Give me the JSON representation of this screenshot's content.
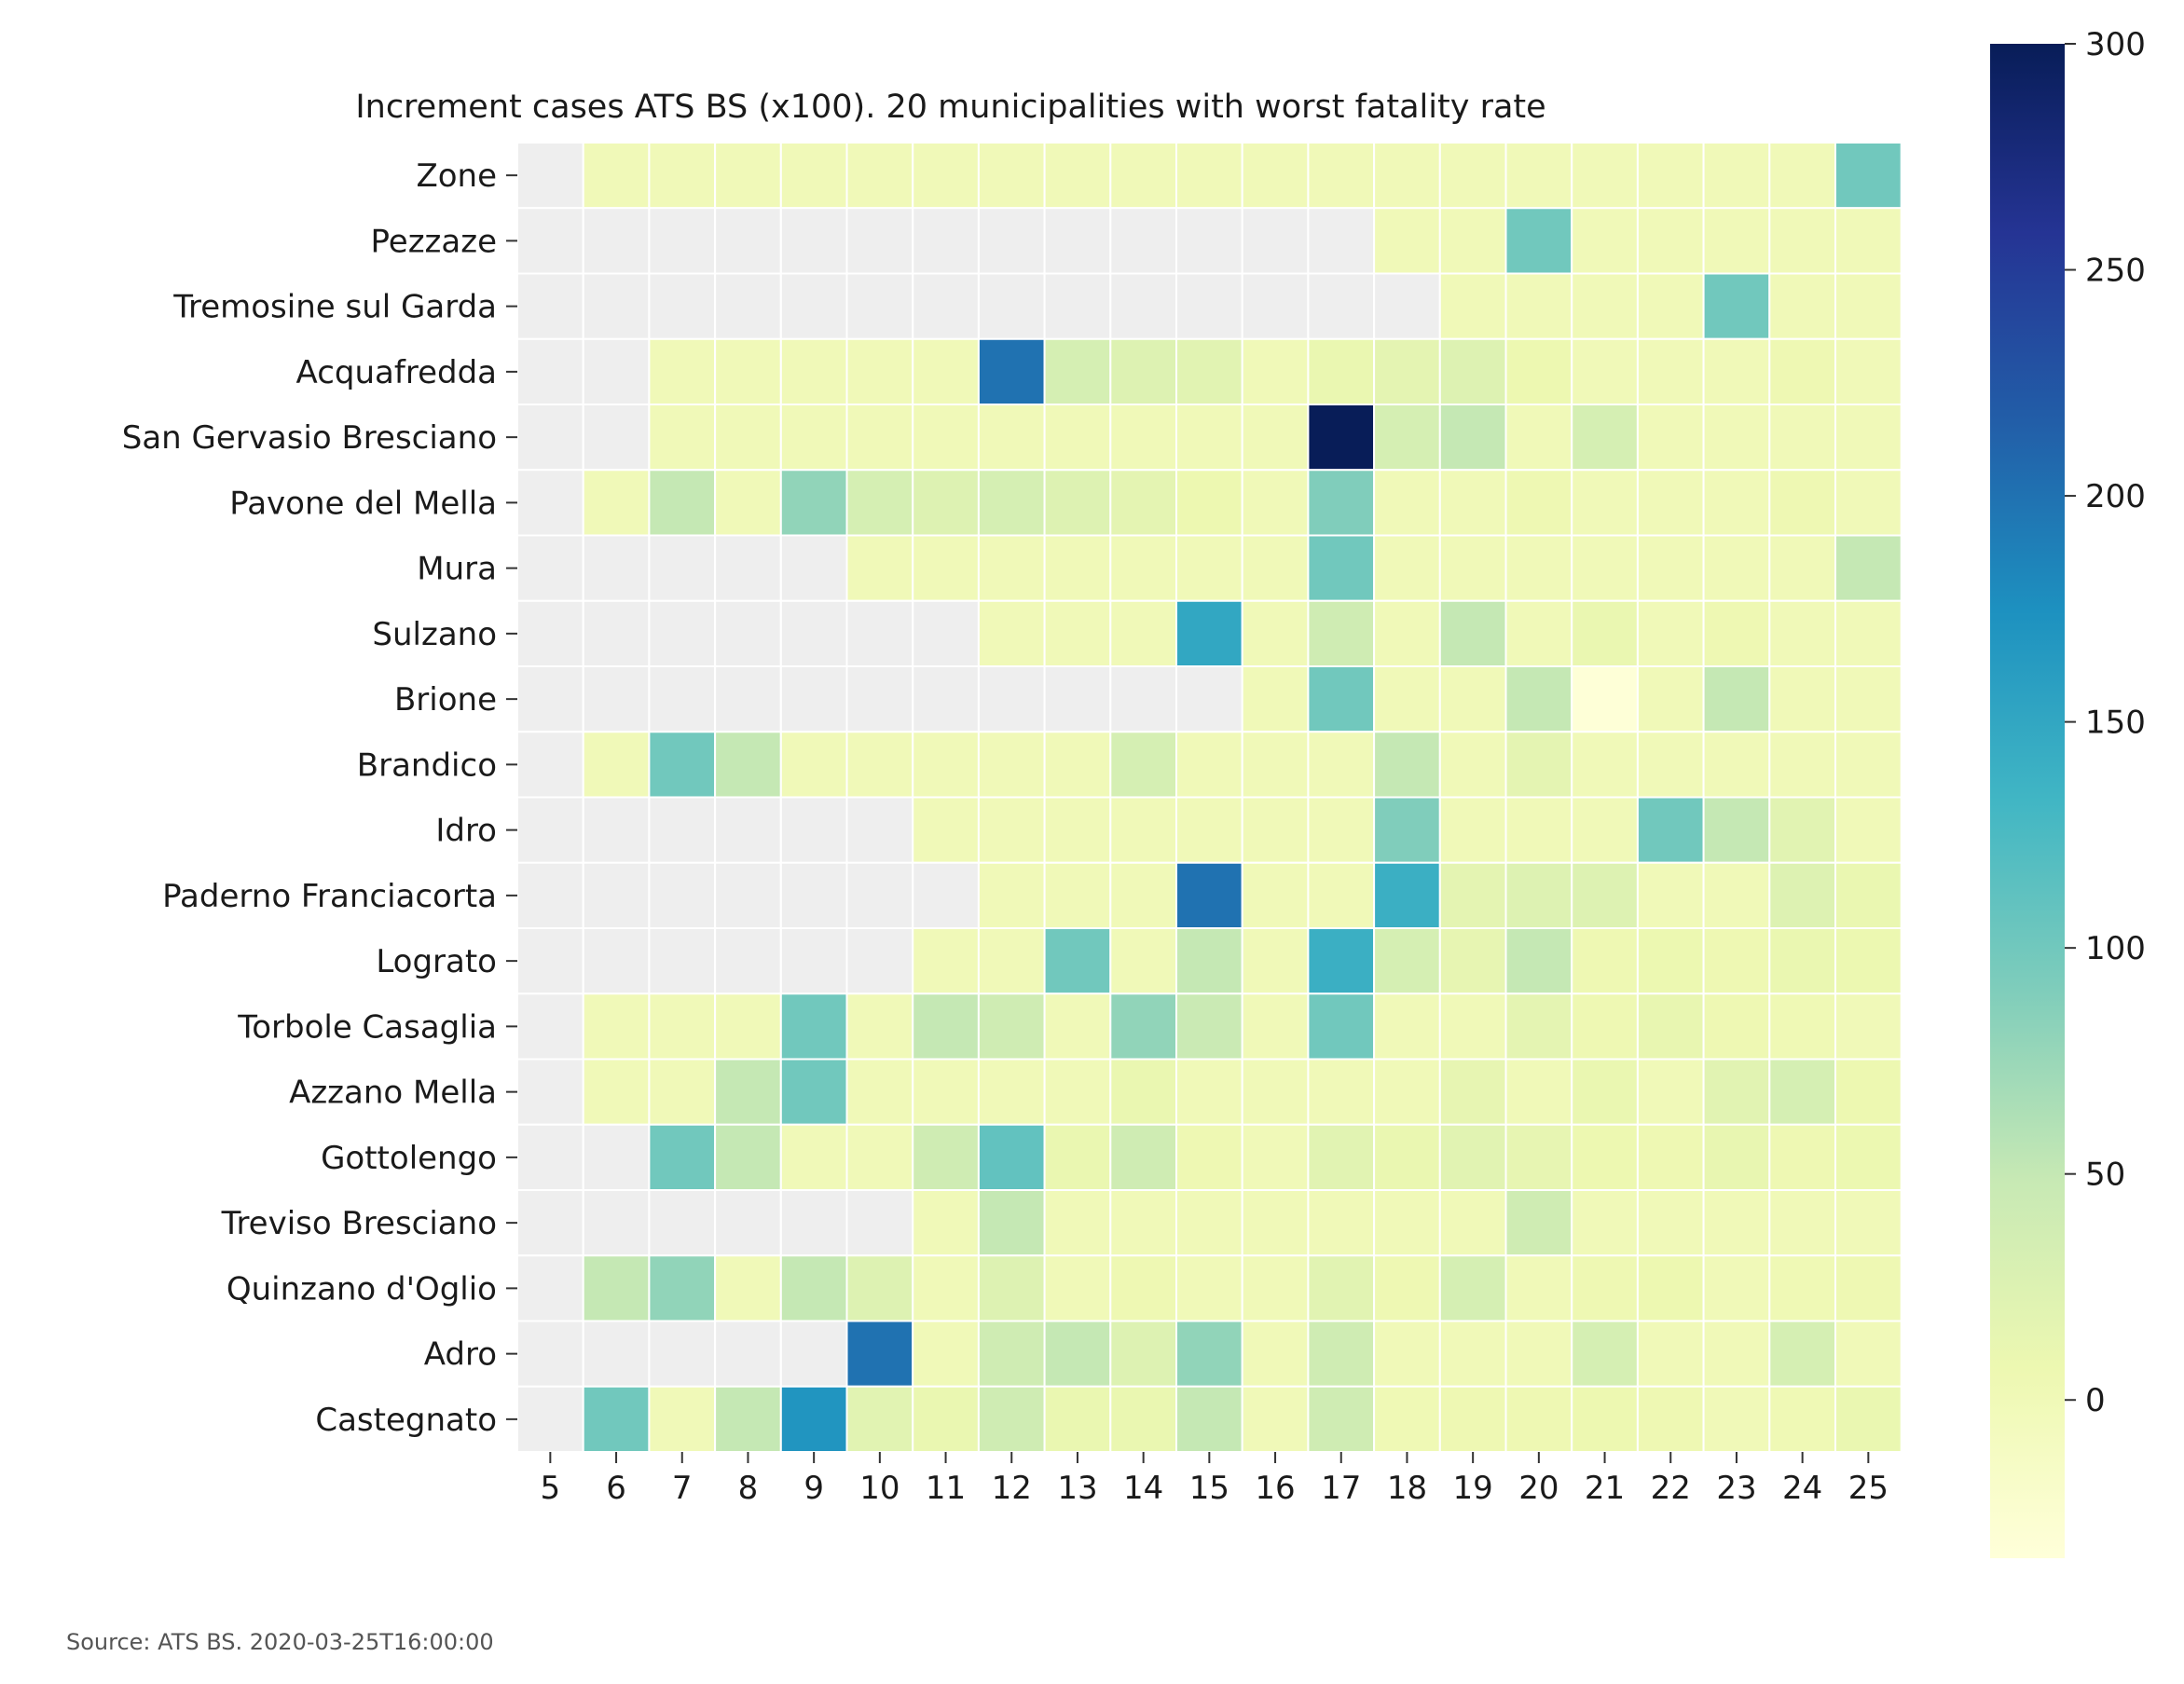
{
  "chart_data": {
    "type": "heatmap",
    "title": "Increment cases ATS BS (x100). 20 municipalities with worst fatality rate",
    "source": "Source: ATS BS. 2020-03-25T16:00:00",
    "x_categories": [
      "5",
      "6",
      "7",
      "8",
      "9",
      "10",
      "11",
      "12",
      "13",
      "14",
      "15",
      "16",
      "17",
      "18",
      "19",
      "20",
      "21",
      "22",
      "23",
      "24",
      "25"
    ],
    "y_categories": [
      "Zone",
      "Pezzaze",
      "Tremosine sul Garda",
      "Acquafredda",
      "San Gervasio Bresciano",
      "Pavone del Mella",
      "Mura",
      "Sulzano",
      "Brione",
      "Brandico",
      "Idro",
      "Paderno Franciacorta",
      "Lograto",
      "Torbole Casaglia",
      "Azzano Mella",
      "Gottolengo",
      "Treviso Bresciano",
      "Quinzano d'Oglio",
      "Adro",
      "Castegnato"
    ],
    "values": [
      [
        null,
        0,
        0,
        0,
        0,
        0,
        0,
        0,
        0,
        0,
        0,
        0,
        0,
        0,
        0,
        0,
        0,
        0,
        0,
        0,
        100
      ],
      [
        null,
        null,
        null,
        null,
        null,
        null,
        null,
        null,
        null,
        null,
        null,
        null,
        null,
        0,
        0,
        100,
        0,
        0,
        0,
        0,
        0
      ],
      [
        null,
        null,
        null,
        null,
        null,
        null,
        null,
        null,
        null,
        null,
        null,
        null,
        null,
        null,
        0,
        0,
        0,
        0,
        100,
        0,
        0
      ],
      [
        null,
        null,
        0,
        0,
        0,
        0,
        0,
        200,
        33,
        25,
        20,
        0,
        10,
        17,
        25,
        7,
        0,
        0,
        0,
        5,
        0
      ],
      [
        null,
        null,
        0,
        0,
        0,
        0,
        0,
        0,
        0,
        0,
        0,
        0,
        300,
        33,
        50,
        0,
        33,
        0,
        0,
        0,
        0
      ],
      [
        null,
        0,
        50,
        0,
        80,
        33,
        25,
        33,
        25,
        17,
        7,
        0,
        90,
        0,
        0,
        5,
        0,
        0,
        0,
        5,
        0
      ],
      [
        null,
        null,
        null,
        null,
        null,
        0,
        0,
        0,
        0,
        0,
        0,
        0,
        100,
        0,
        0,
        0,
        0,
        0,
        0,
        0,
        50
      ],
      [
        null,
        null,
        null,
        null,
        null,
        null,
        null,
        0,
        0,
        0,
        150,
        0,
        40,
        0,
        50,
        0,
        10,
        0,
        5,
        0,
        0
      ],
      [
        null,
        null,
        null,
        null,
        null,
        null,
        null,
        null,
        null,
        null,
        null,
        0,
        100,
        0,
        0,
        50,
        -33,
        0,
        50,
        0,
        0
      ],
      [
        null,
        0,
        100,
        50,
        0,
        0,
        0,
        0,
        0,
        33,
        0,
        0,
        0,
        50,
        0,
        17,
        0,
        0,
        0,
        0,
        0
      ],
      [
        null,
        null,
        null,
        null,
        null,
        null,
        0,
        0,
        0,
        0,
        0,
        0,
        0,
        90,
        0,
        0,
        0,
        100,
        50,
        20,
        0
      ],
      [
        null,
        null,
        null,
        null,
        null,
        null,
        null,
        0,
        0,
        0,
        200,
        0,
        0,
        140,
        17,
        25,
        25,
        0,
        0,
        25,
        10
      ],
      [
        null,
        null,
        null,
        null,
        null,
        null,
        0,
        0,
        100,
        0,
        50,
        0,
        140,
        33,
        14,
        50,
        5,
        8,
        5,
        10,
        8
      ],
      [
        null,
        0,
        0,
        0,
        100,
        0,
        50,
        40,
        0,
        80,
        45,
        0,
        100,
        0,
        0,
        17,
        5,
        12,
        5,
        3,
        0
      ],
      [
        null,
        0,
        0,
        50,
        100,
        0,
        0,
        0,
        0,
        10,
        0,
        0,
        0,
        0,
        14,
        0,
        10,
        0,
        20,
        33,
        7
      ],
      [
        null,
        null,
        100,
        50,
        0,
        0,
        40,
        110,
        10,
        40,
        5,
        0,
        20,
        10,
        20,
        14,
        7,
        5,
        12,
        5,
        8
      ],
      [
        null,
        null,
        null,
        null,
        null,
        null,
        0,
        50,
        0,
        0,
        0,
        0,
        0,
        0,
        0,
        40,
        0,
        0,
        0,
        0,
        0
      ],
      [
        null,
        50,
        80,
        0,
        50,
        25,
        0,
        25,
        0,
        5,
        0,
        0,
        20,
        5,
        33,
        0,
        5,
        7,
        0,
        3,
        5
      ],
      [
        null,
        null,
        null,
        null,
        null,
        200,
        0,
        40,
        50,
        25,
        80,
        0,
        40,
        0,
        0,
        0,
        33,
        0,
        0,
        33,
        0
      ],
      [
        null,
        100,
        0,
        50,
        170,
        20,
        10,
        40,
        10,
        10,
        50,
        0,
        40,
        3,
        5,
        5,
        7,
        5,
        0,
        3,
        10
      ]
    ],
    "colorbar": {
      "vmin": -35,
      "vmax": 300,
      "ticks": [
        "0",
        "50",
        "100",
        "150",
        "200",
        "250",
        "300"
      ],
      "colormap": "YlGnBu"
    },
    "missing_color": "#eeeeee"
  }
}
